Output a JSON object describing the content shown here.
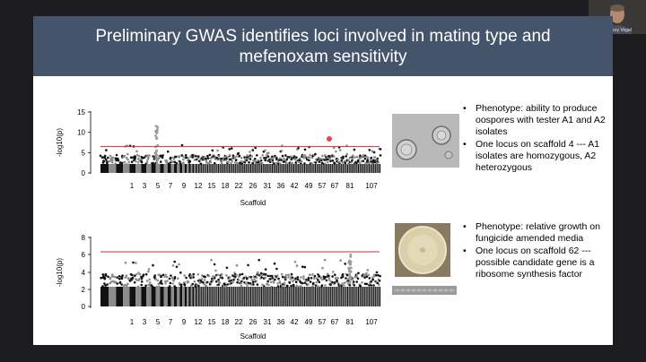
{
  "slide": {
    "title": "Preliminary GWAS identifies loci involved in mating type and mefenoxam sensitivity"
  },
  "participant": {
    "name": "Gregory Vogel"
  },
  "plot_top": {
    "ylabel": "-log10(p)",
    "xlabel": "Scaffold",
    "yticks": [
      "0",
      "5",
      "10",
      "15"
    ],
    "xticks": [
      "1",
      "3",
      "5",
      "7",
      "9",
      "12",
      "15",
      "18",
      "22",
      "26",
      "31",
      "36",
      "42",
      "49",
      "57",
      "67",
      "81",
      "107"
    ],
    "threshold_color": "#cc3333",
    "pointer_color": "#e8474a"
  },
  "plot_bottom": {
    "ylabel": "-log10(p)",
    "xlabel": "Scaffold",
    "yticks": [
      "0",
      "2",
      "4",
      "6",
      "8"
    ],
    "xticks": [
      "1",
      "3",
      "5",
      "7",
      "9",
      "12",
      "15",
      "18",
      "22",
      "26",
      "31",
      "36",
      "42",
      "49",
      "57",
      "67",
      "81",
      "107"
    ],
    "threshold_color": "#cc3333"
  },
  "bullets_top": [
    "Phenotype: ability to produce oospores with tester A1 and A2 isolates",
    "One locus on scaffold 4 --- A1 isolates are homozygous, A2 heterozygous"
  ],
  "bullets_bottom": [
    "Phenotype: relative growth on fungicide amended media",
    "One locus on scaffold 62 --- possible candidate gene is a ribosome synthesis factor"
  ]
}
